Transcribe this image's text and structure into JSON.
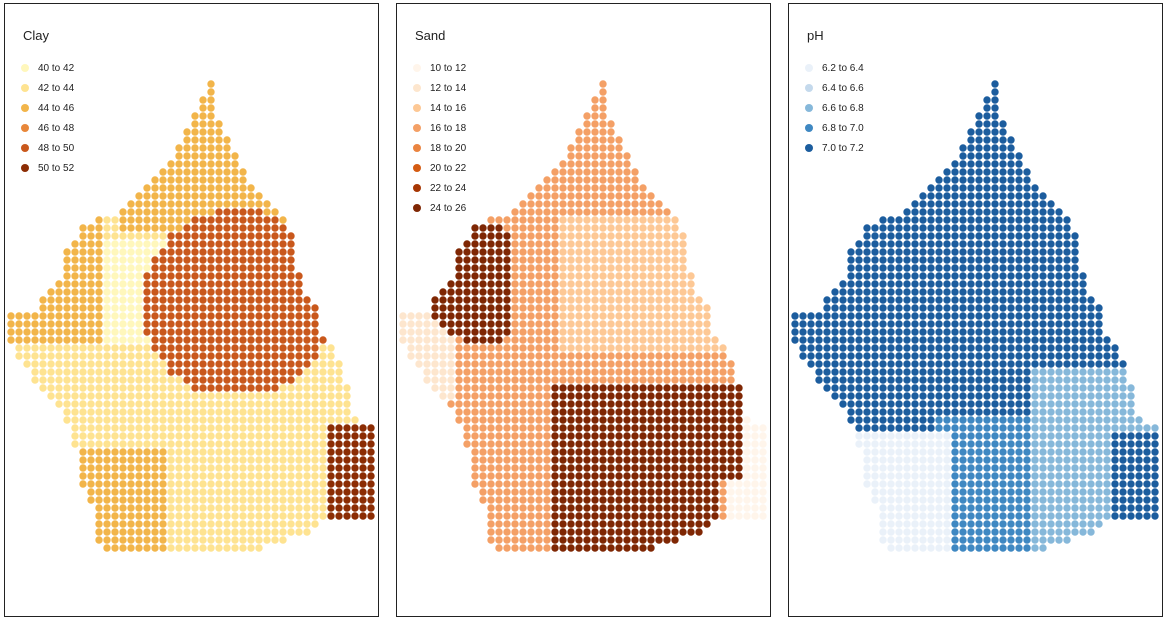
{
  "panels": [
    {
      "title": "Clay",
      "classes": [
        {
          "label": "40 to 42",
          "color": "#fff7bc"
        },
        {
          "label": "42 to 44",
          "color": "#fee391"
        },
        {
          "label": "44 to 46",
          "color": "#f2b54a"
        },
        {
          "label": "46 to 48",
          "color": "#e8873a"
        },
        {
          "label": "48 to 50",
          "color": "#c9581c"
        },
        {
          "label": "50 to 52",
          "color": "#8c2d04"
        }
      ]
    },
    {
      "title": "Sand",
      "classes": [
        {
          "label": "10 to 12",
          "color": "#fff5eb"
        },
        {
          "label": "12 to 14",
          "color": "#fde6ce"
        },
        {
          "label": "14 to 16",
          "color": "#fdc895"
        },
        {
          "label": "16 to 18",
          "color": "#f4a066"
        },
        {
          "label": "18 to 20",
          "color": "#ea8440"
        },
        {
          "label": "20 to 22",
          "color": "#d45b12"
        },
        {
          "label": "22 to 24",
          "color": "#a63603"
        },
        {
          "label": "24 to 26",
          "color": "#7f2704"
        }
      ]
    },
    {
      "title": "pH",
      "classes": [
        {
          "label": "6.2 to 6.4",
          "color": "#eaf1f9"
        },
        {
          "label": "6.4 to 6.6",
          "color": "#c4d9ec"
        },
        {
          "label": "6.6 to 6.8",
          "color": "#86b8da"
        },
        {
          "label": "6.8 to 7.0",
          "color": "#3f88c2"
        },
        {
          "label": "7.0 to 7.2",
          "color": "#1c5d9e"
        }
      ]
    }
  ]
}
